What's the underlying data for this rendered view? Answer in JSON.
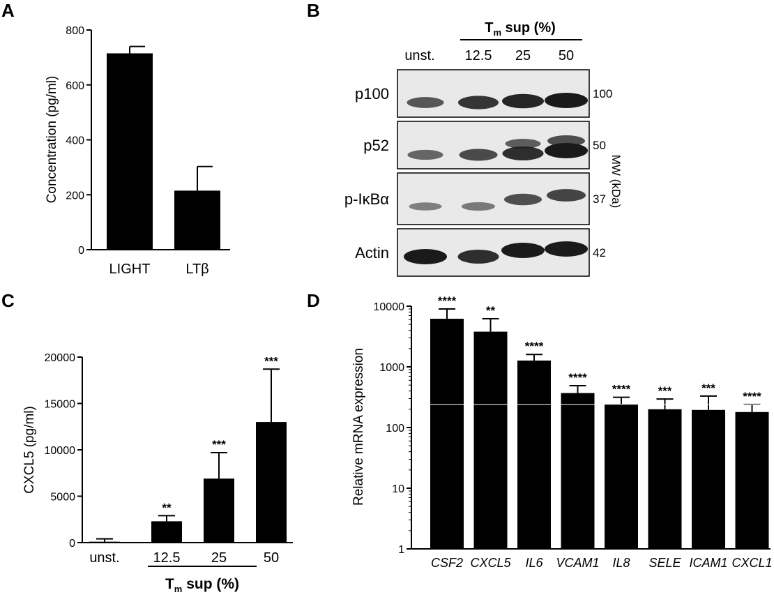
{
  "panels": {
    "a": "A",
    "b": "B",
    "c": "C",
    "d": "D"
  },
  "colors": {
    "bar": "#000000",
    "band": "#1a1a1a",
    "blot_bg": "#e9e9e9"
  },
  "chart_data": [
    {
      "id": "A",
      "type": "bar",
      "categories": [
        "LIGHT",
        "LTβ"
      ],
      "values": [
        715,
        215
      ],
      "errors": [
        25,
        88
      ],
      "ylabel": "Concentration (pg/ml)",
      "ylim": [
        0,
        800
      ],
      "yticks": [
        0,
        200,
        400,
        600,
        800
      ]
    },
    {
      "id": "C",
      "type": "bar",
      "categories": [
        "unst.",
        "12.5",
        "25",
        "50"
      ],
      "values": [
        100,
        2300,
        6900,
        13000
      ],
      "errors": [
        300,
        600,
        2800,
        5700
      ],
      "significance": [
        "",
        "**",
        "***",
        "***"
      ],
      "ylabel": "CXCL5 (pg/ml)",
      "xlabel_main": "T",
      "xlabel_sub": "m",
      "xlabel_rest": " sup (%)",
      "ylim": [
        0,
        20000
      ],
      "yticks": [
        0,
        5000,
        10000,
        15000,
        20000
      ]
    },
    {
      "id": "D",
      "type": "bar",
      "scale": "log",
      "categories": [
        "CSF2",
        "CXCL5",
        "IL6",
        "VCAM1",
        "IL8",
        "SELE",
        "ICAM1",
        "CXCL1"
      ],
      "values": [
        6200,
        3800,
        1270,
        370,
        245,
        200,
        195,
        180
      ],
      "error_top": [
        9000,
        6200,
        1600,
        490,
        315,
        295,
        330,
        240
      ],
      "significance": [
        "****",
        "**",
        "****",
        "****",
        "****",
        "***",
        "***",
        "****"
      ],
      "ylabel": "Relative mRNA expression",
      "ylim": [
        1,
        10000
      ],
      "yticks": [
        1,
        10,
        100,
        1000,
        10000
      ]
    }
  ],
  "blot": {
    "header_main": "T",
    "header_sub": "m",
    "header_rest": " sup (%)",
    "lanes": [
      "unst.",
      "12.5",
      "25",
      "50"
    ],
    "rows": [
      {
        "label": "p100",
        "mw": "100",
        "intensity": [
          0.55,
          0.8,
          0.9,
          1.0
        ]
      },
      {
        "label": "p52",
        "mw": "50",
        "intensity": [
          0.45,
          0.65,
          0.85,
          1.0
        ]
      },
      {
        "label": "p-IκBα",
        "mw": "37",
        "intensity": [
          0.25,
          0.3,
          0.6,
          0.7
        ]
      },
      {
        "label": "Actin",
        "mw": "42",
        "intensity": [
          1.0,
          0.85,
          1.0,
          1.0
        ]
      }
    ],
    "mw_axis_label": "MW (kDa)"
  }
}
